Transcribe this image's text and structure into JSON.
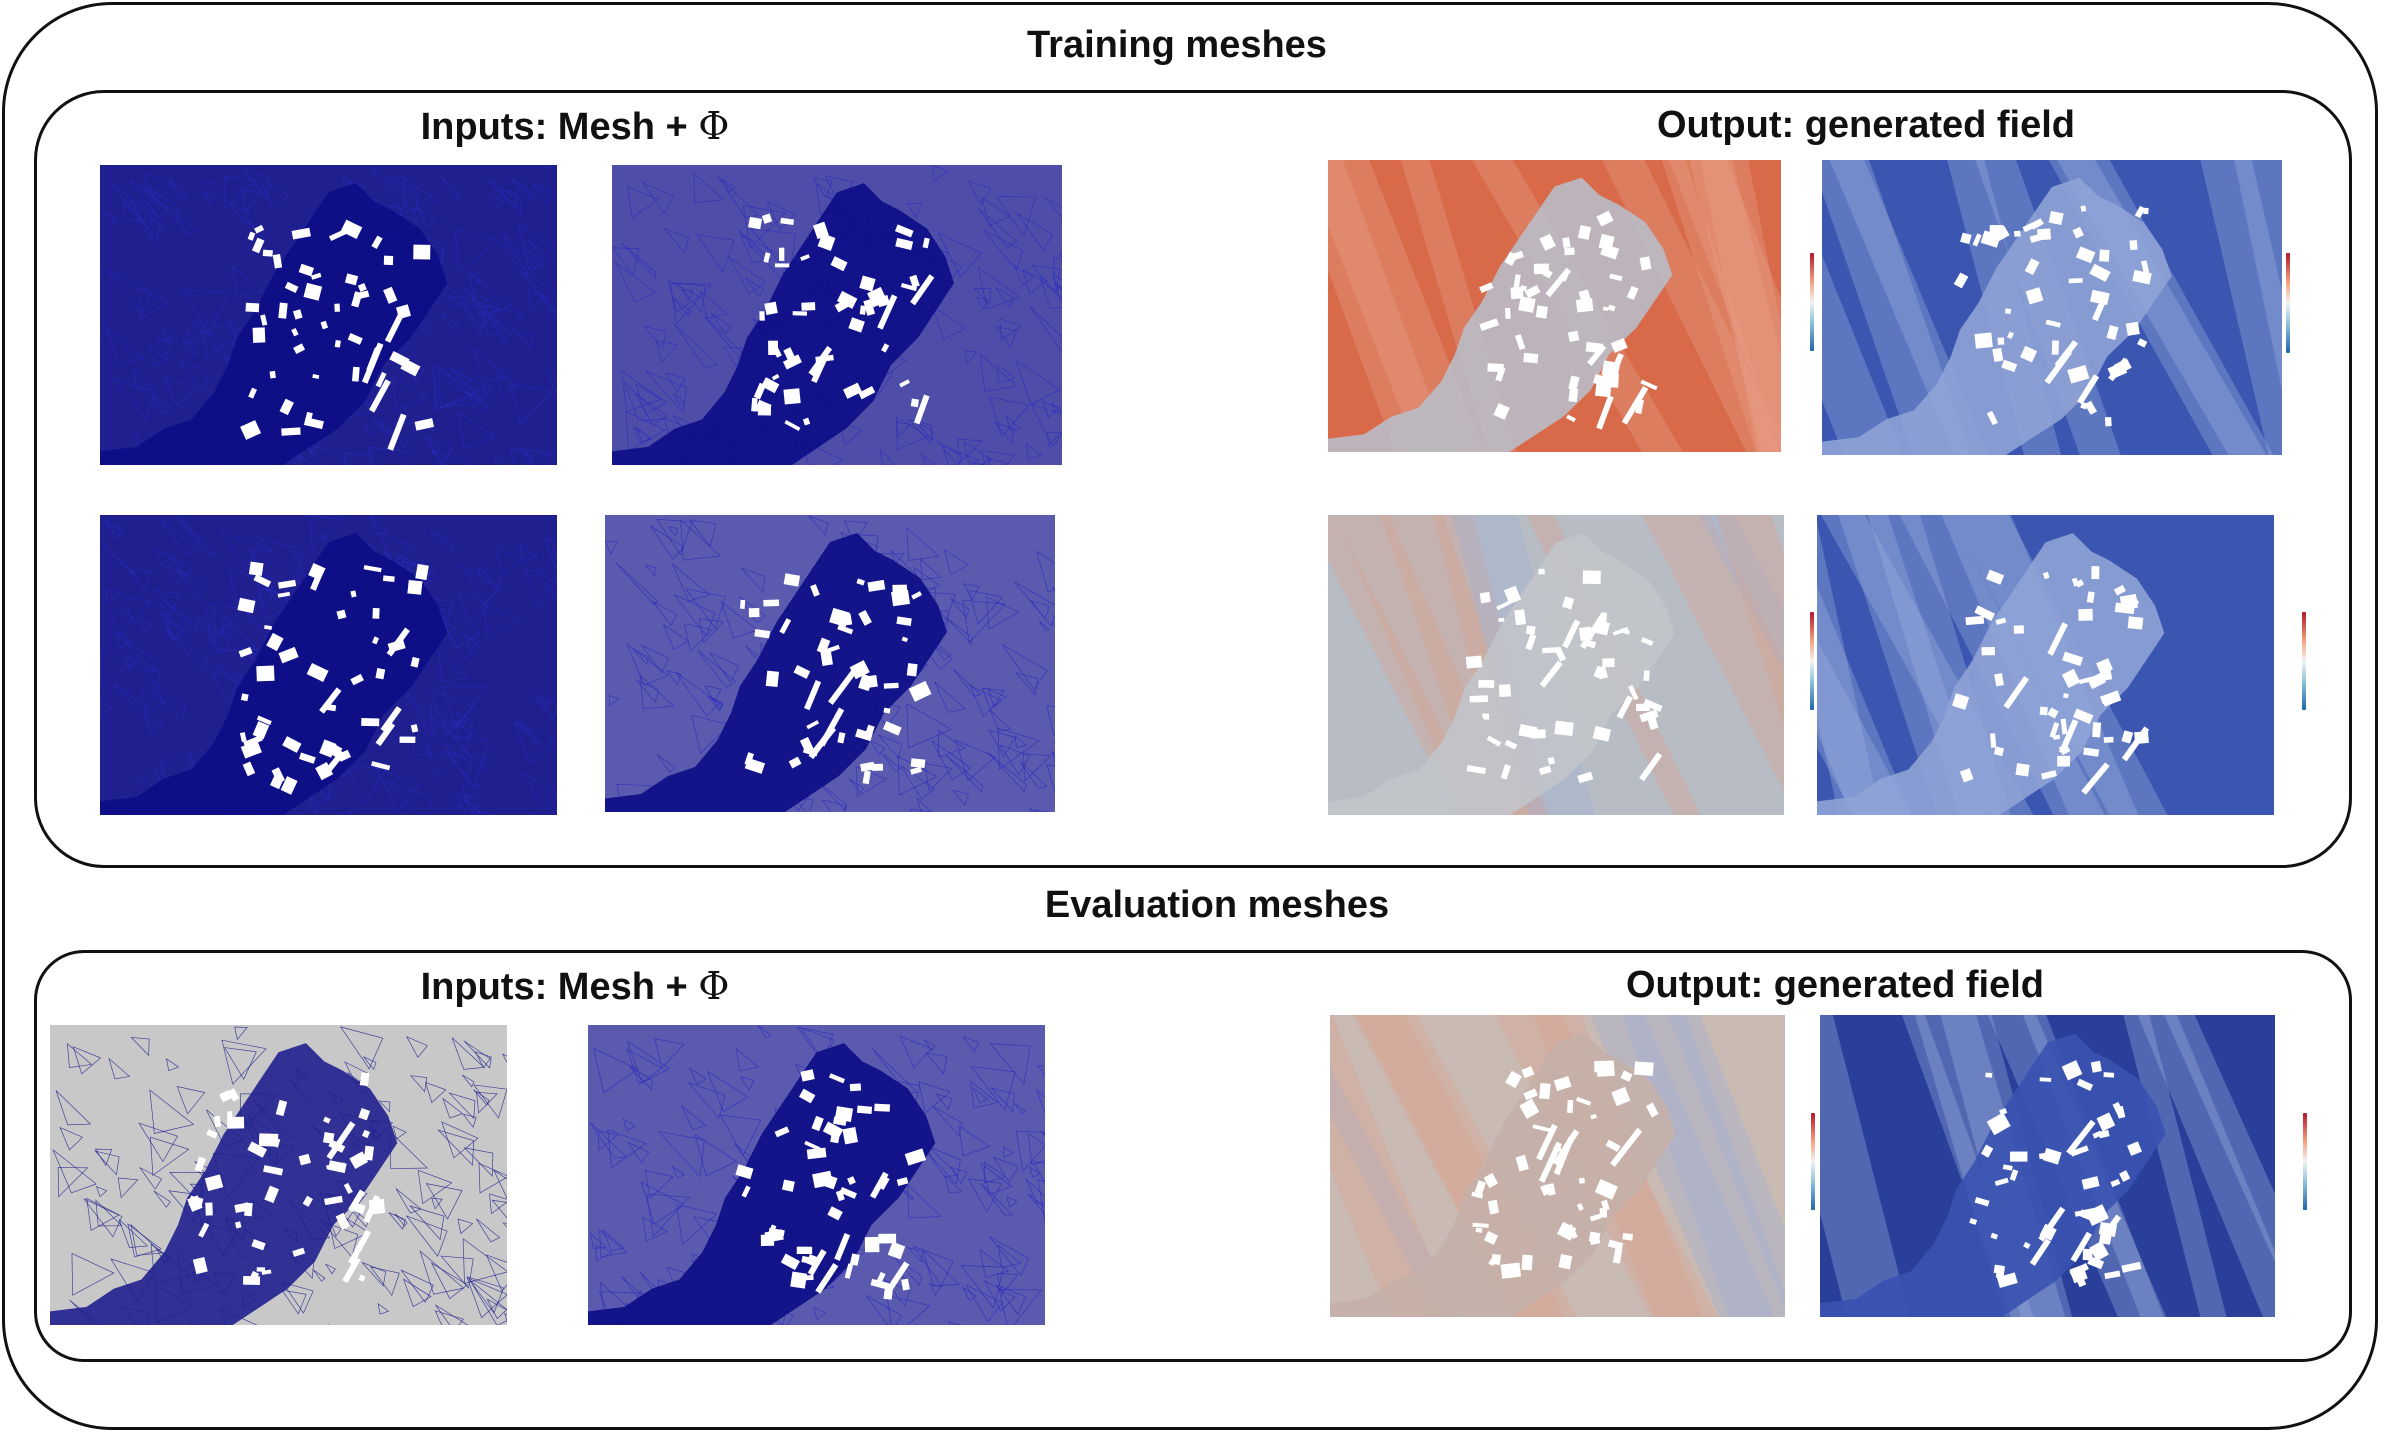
{
  "sections": {
    "training": {
      "title": "Training meshes"
    },
    "evaluation": {
      "title": "Evaluation meshes"
    }
  },
  "labels": {
    "inputs_prefix": "Inputs: Mesh + ",
    "phi_symbol": "Φ",
    "output": "Output: generated field"
  },
  "colors": {
    "mesh": "#1f1f8f",
    "mesh_dense": "#0c0c86",
    "mesh_background": "#c8c8c8",
    "field_neutral": "#b8bcc4",
    "field_warm": "#d26a4e",
    "field_cool": "#3a56b0",
    "colorbar_top": "#b2182b",
    "colorbar_bottom": "#2166ac"
  }
}
